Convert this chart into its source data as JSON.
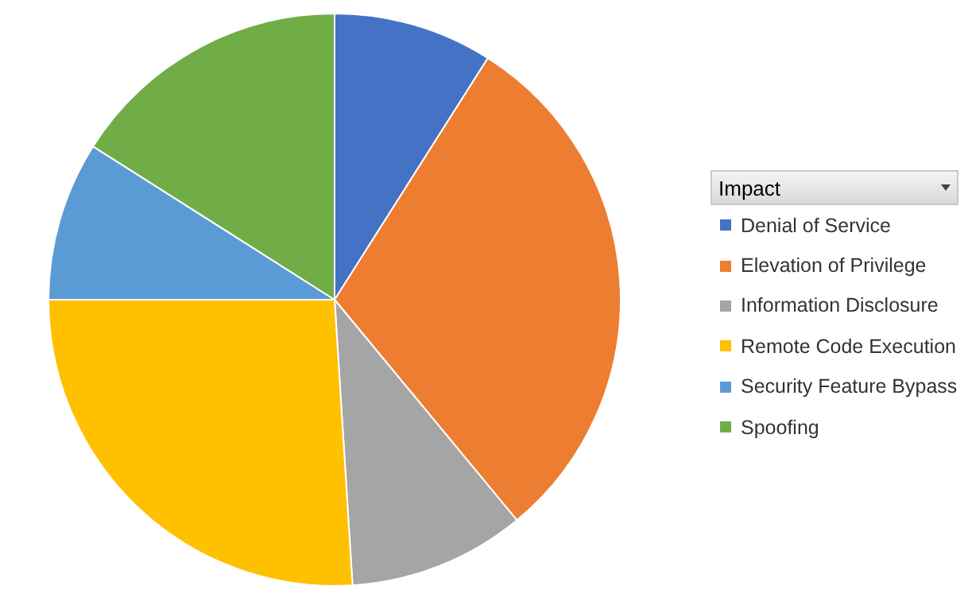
{
  "chart_data": {
    "type": "pie",
    "legend_title": "Impact",
    "legend": "right",
    "categories": [
      "Denial of Service",
      "Elevation of Privilege",
      "Information Disclosure",
      "Remote Code Execution",
      "Security Feature Bypass",
      "Spoofing"
    ],
    "values": [
      9,
      30,
      10,
      26,
      9,
      16
    ],
    "colors": [
      "#4472c4",
      "#ed7d31",
      "#a5a5a5",
      "#ffc000",
      "#5b9bd5",
      "#70ad47"
    ]
  }
}
